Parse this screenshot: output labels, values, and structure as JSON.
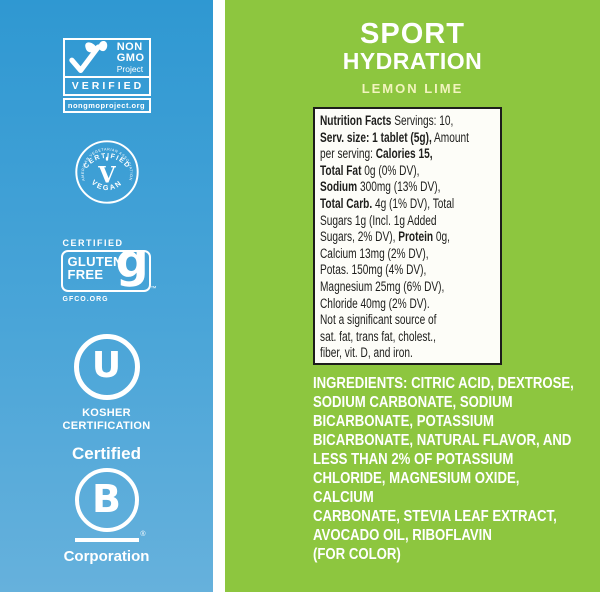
{
  "colors": {
    "panel_blue": "#2f98d2",
    "panel_green": "#8dc63f",
    "flavor_text": "#f2f4be",
    "badge_white": "#ffffff",
    "nutrition_text": "#1d1d1b"
  },
  "left_panel": {
    "non_gmo": {
      "line1": "NON",
      "line2": "GMO",
      "line3": "Project",
      "verified": "VERIFIED",
      "url": "nongmoproject.org"
    },
    "vegan": {
      "certified": "CERTIFIED",
      "association": "AMERICAN VEGETARIAN ASSOCIATION",
      "letter": "V",
      "vegan": "VEGAN"
    },
    "gluten_free": {
      "certified": "CERTIFIED",
      "word1": "GLUTEN",
      "word2": "FREE",
      "g": "g",
      "tm": "™",
      "org": "GFCO.ORG"
    },
    "kosher": {
      "letter": "U",
      "line1": "KOSHER",
      "line2": "CERTIFICATION"
    },
    "bcorp": {
      "certified": "Certified",
      "letter": "B",
      "reg": "®",
      "corporation": "Corporation"
    }
  },
  "right_panel": {
    "title_line1": "SPORT",
    "title_line2": "HYDRATION",
    "flavor": "LEMON LIME",
    "nutrition": {
      "lines": [
        [
          {
            "t": "Nutrition Facts ",
            "b": true
          },
          {
            "t": "Servings: 10,",
            "b": false
          }
        ],
        [
          {
            "t": "Serv. size: 1 tablet (5g),",
            "b": true
          },
          {
            "t": " Amount",
            "b": false
          }
        ],
        [
          {
            "t": "per serving: ",
            "b": false
          },
          {
            "t": "Calories 15,",
            "b": true
          }
        ],
        [
          {
            "t": "Total Fat",
            "b": true
          },
          {
            "t": " 0g (0% DV),",
            "b": false
          }
        ],
        [
          {
            "t": "Sodium",
            "b": true
          },
          {
            "t": " 300mg (13% DV),",
            "b": false
          }
        ],
        [
          {
            "t": "Total Carb.",
            "b": true
          },
          {
            "t": " 4g (1% DV), Total",
            "b": false
          }
        ],
        [
          {
            "t": "Sugars 1g (Incl. 1g Added",
            "b": false
          }
        ],
        [
          {
            "t": "Sugars, 2% DV), ",
            "b": false
          },
          {
            "t": "Protein",
            "b": true
          },
          {
            "t": " 0g,",
            "b": false
          }
        ],
        [
          {
            "t": "Calcium 13mg (2% DV),",
            "b": false
          }
        ],
        [
          {
            "t": "Potas. 150mg (4% DV),",
            "b": false
          }
        ],
        [
          {
            "t": "Magnesium 25mg (6% DV),",
            "b": false
          }
        ],
        [
          {
            "t": "Chloride 40mg (2% DV).",
            "b": false
          }
        ],
        [
          {
            "t": "Not a significant source of",
            "b": false
          }
        ],
        [
          {
            "t": "sat. fat, trans fat, cholest.,",
            "b": false
          }
        ],
        [
          {
            "t": "fiber, vit. D, and iron.",
            "b": false
          }
        ]
      ]
    },
    "ingredients": {
      "lines": [
        "INGREDIENTS: CITRIC ACID, DEXTROSE,",
        "SODIUM CARBONATE, SODIUM",
        "BICARBONATE, POTASSIUM",
        "BICARBONATE, NATURAL FLAVOR, AND",
        "LESS THAN 2% OF POTASSIUM",
        "CHLORIDE, MAGNESIUM OXIDE, CALCIUM",
        "CARBONATE, STEVIA LEAF EXTRACT,",
        "AVOCADO OIL, RIBOFLAVIN",
        "(FOR COLOR)"
      ]
    }
  }
}
